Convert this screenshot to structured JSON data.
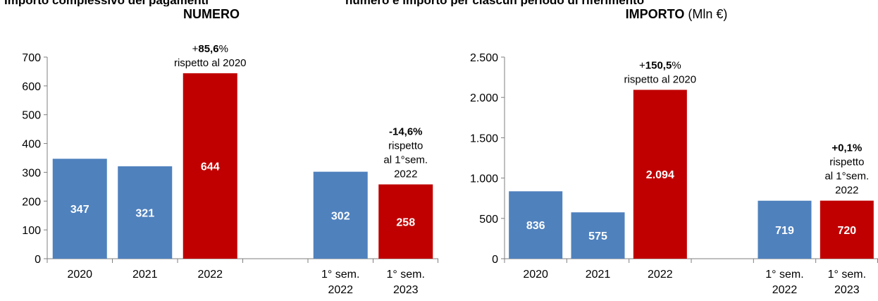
{
  "header_fragments": [
    "Importo complessivo dei pagamenti",
    "numero e importo per ciascun periodo di riferimento"
  ],
  "charts_titles": [
    {
      "bold": "NUMERO",
      "normal": ""
    },
    {
      "bold": "IMPORTO",
      "normal": " (Mln €)"
    }
  ],
  "colors": {
    "blue": "#4F81BD",
    "red": "#C00000"
  },
  "chart_data": [
    {
      "type": "bar",
      "title": "NUMERO",
      "categories": [
        "2020",
        "2021",
        "2022",
        "",
        "1° sem. 2022",
        "1° sem. 2023"
      ],
      "category_lines": [
        [
          "2020"
        ],
        [
          "2021"
        ],
        [
          "2022"
        ],
        [],
        [
          "1° sem.",
          "2022"
        ],
        [
          "1° sem.",
          "2023"
        ]
      ],
      "values": [
        347,
        321,
        644,
        null,
        302,
        258
      ],
      "value_labels": [
        "347",
        "321",
        "644",
        "",
        "302",
        "258"
      ],
      "bar_colors": [
        "blue",
        "blue",
        "red",
        null,
        "blue",
        "red"
      ],
      "ylim": [
        0,
        700
      ],
      "yticks": [
        0,
        100,
        200,
        300,
        400,
        500,
        600,
        700
      ],
      "ytick_labels": [
        "0",
        "100",
        "200",
        "300",
        "400",
        "500",
        "600",
        "700"
      ],
      "annotations": [
        {
          "bar": 2,
          "lines": [
            {
              "normal": "+",
              "bold": "85,6",
              "tail": "%"
            },
            {
              "normal": "rispetto al 2020"
            }
          ]
        },
        {
          "bar": 5,
          "lines": [
            {
              "bold": "-14,6%"
            },
            {
              "normal": "rispetto"
            },
            {
              "normal": "al 1°sem."
            },
            {
              "normal": "2022"
            }
          ]
        }
      ]
    },
    {
      "type": "bar",
      "title": "IMPORTO (Mln €)",
      "categories": [
        "2020",
        "2021",
        "2022",
        "",
        "1° sem. 2022",
        "1° sem. 2023"
      ],
      "category_lines": [
        [
          "2020"
        ],
        [
          "2021"
        ],
        [
          "2022"
        ],
        [],
        [
          "1° sem.",
          "2022"
        ],
        [
          "1° sem.",
          "2023"
        ]
      ],
      "values": [
        836,
        575,
        2094,
        null,
        719,
        720
      ],
      "value_labels": [
        "836",
        "575",
        "2.094",
        "",
        "719",
        "720"
      ],
      "bar_colors": [
        "blue",
        "blue",
        "red",
        null,
        "blue",
        "red"
      ],
      "ylim": [
        0,
        2500
      ],
      "yticks": [
        0,
        500,
        1000,
        1500,
        2000,
        2500
      ],
      "ytick_labels": [
        "0",
        "500",
        "1.000",
        "1.500",
        "2.000",
        "2.500"
      ],
      "annotations": [
        {
          "bar": 2,
          "lines": [
            {
              "normal": "+",
              "bold": "150,5",
              "tail": "%"
            },
            {
              "normal": "rispetto al 2020"
            }
          ]
        },
        {
          "bar": 5,
          "lines": [
            {
              "bold": "+0,1%"
            },
            {
              "normal": "rispetto"
            },
            {
              "normal": "al 1°sem."
            },
            {
              "normal": "2022"
            }
          ]
        }
      ]
    }
  ]
}
